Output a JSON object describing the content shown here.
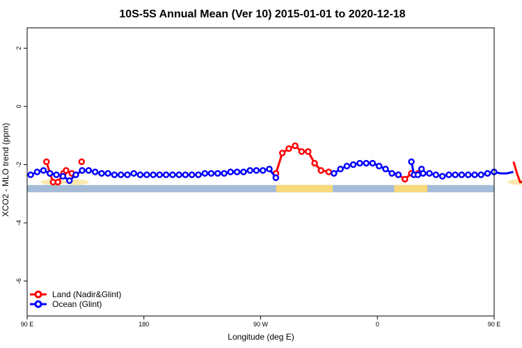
{
  "chart_data": {
    "type": "line",
    "title": "10S-5S Annual Mean (Ver 10)   2015-01-01 to 2020-12-18",
    "xlabel": "Longitude (deg E)",
    "ylabel": "XCO2 - MLO trend (ppm)",
    "xlim": [
      90,
      450
    ],
    "ylim": [
      -7.2,
      2.7
    ],
    "xticks": [
      {
        "value": 90,
        "label": "90 E"
      },
      {
        "value": 180,
        "label": "180"
      },
      {
        "value": 270,
        "label": "90 W"
      },
      {
        "value": 360,
        "label": "0"
      },
      {
        "value": 450,
        "label": "90 E"
      },
      {
        "value": 540,
        "label": "180"
      }
    ],
    "yticks": [
      {
        "value": 2,
        "label": "2"
      },
      {
        "value": 0,
        "label": "0"
      },
      {
        "value": -2,
        "label": "-2"
      },
      {
        "value": -4,
        "label": "-4"
      },
      {
        "value": -6,
        "label": "-6"
      }
    ],
    "legend_position": "bottom-left",
    "series": [
      {
        "name": "Land (Nadir&Glint)",
        "color": "#ff0000",
        "segments": [
          [
            [
              104.9,
              -1.9
            ],
            [
              107.6,
              -2.3
            ],
            [
              110.0,
              -2.6
            ],
            [
              113.7,
              -2.6
            ],
            [
              118.0,
              -2.3
            ],
            [
              120.0,
              -2.2
            ],
            [
              124.4,
              -2.3
            ]
          ],
          [
            [
              132.0,
              -1.9
            ]
          ],
          [
            [
              281.8,
              -2.3
            ],
            [
              286.7,
              -1.6
            ],
            [
              291.7,
              -1.45
            ],
            [
              296.6,
              -1.35
            ],
            [
              301.6,
              -1.55
            ],
            [
              306.6,
              -1.55
            ],
            [
              311.6,
              -1.95
            ],
            [
              316.5,
              -2.2
            ],
            [
              322.5,
              -2.25
            ]
          ],
          [
            [
              376.0,
              -2.35
            ],
            [
              381.2,
              -2.5
            ],
            [
              386.2,
              -2.3
            ],
            [
              391.4,
              -2.3
            ]
          ],
          [
            [
              464.9,
              -1.9
            ],
            [
              467.6,
              -2.3
            ],
            [
              470.0,
              -2.6
            ],
            [
              473.7,
              -2.6
            ],
            [
              478.0,
              -2.3
            ],
            [
              480.0,
              -2.2
            ],
            [
              484.4,
              -2.3
            ]
          ],
          [
            [
              492.0,
              -1.9
            ]
          ]
        ]
      },
      {
        "name": "Ocean (Glint)",
        "color": "#0000ff",
        "segments": [
          [
            [
              92.7,
              -2.35
            ],
            [
              97.7,
              -2.25
            ],
            [
              102.6,
              -2.2
            ],
            [
              107.6,
              -2.3
            ],
            [
              112.6,
              -2.35
            ],
            [
              117.6,
              -2.4
            ],
            [
              122.6,
              -2.55
            ],
            [
              127.5,
              -2.35
            ],
            [
              132.4,
              -2.2
            ],
            [
              137.4,
              -2.2
            ],
            [
              142.4,
              -2.25
            ],
            [
              147.4,
              -2.3
            ],
            [
              152.3,
              -2.3
            ],
            [
              157.3,
              -2.35
            ],
            [
              162.3,
              -2.35
            ],
            [
              167.3,
              -2.35
            ],
            [
              172.2,
              -2.3
            ],
            [
              177.2,
              -2.35
            ],
            [
              182.2,
              -2.35
            ],
            [
              187.2,
              -2.35
            ],
            [
              192.1,
              -2.35
            ],
            [
              197.1,
              -2.35
            ],
            [
              202.1,
              -2.35
            ],
            [
              207.1,
              -2.35
            ],
            [
              212.0,
              -2.35
            ],
            [
              217.0,
              -2.35
            ],
            [
              222.0,
              -2.35
            ],
            [
              227.0,
              -2.3
            ],
            [
              231.9,
              -2.3
            ],
            [
              236.9,
              -2.3
            ],
            [
              241.9,
              -2.3
            ],
            [
              246.8,
              -2.25
            ],
            [
              251.8,
              -2.25
            ],
            [
              256.8,
              -2.25
            ],
            [
              261.8,
              -2.2
            ],
            [
              266.7,
              -2.2
            ],
            [
              271.7,
              -2.2
            ],
            [
              276.7,
              -2.15
            ],
            [
              281.7,
              -2.45
            ]
          ],
          [
            [
              326.5,
              -2.3
            ],
            [
              331.5,
              -2.15
            ],
            [
              336.5,
              -2.05
            ],
            [
              341.4,
              -2.0
            ],
            [
              346.4,
              -1.95
            ],
            [
              351.4,
              -1.95
            ],
            [
              356.3,
              -1.95
            ],
            [
              361.3,
              -2.05
            ],
            [
              366.3,
              -2.15
            ],
            [
              371.2,
              -2.3
            ],
            [
              376.2,
              -2.35
            ]
          ],
          [
            [
              386.2,
              -1.9
            ],
            [
              388.2,
              -2.35
            ],
            [
              391.2,
              -2.35
            ],
            [
              395.2,
              -2.3
            ],
            [
              400.1,
              -2.3
            ],
            [
              405.1,
              -2.35
            ],
            [
              410.1,
              -2.4
            ],
            [
              415.1,
              -2.35
            ],
            [
              420.0,
              -2.35
            ],
            [
              425.0,
              -2.35
            ],
            [
              430.0,
              -2.35
            ],
            [
              435.0,
              -2.35
            ],
            [
              439.9,
              -2.35
            ],
            [
              444.9,
              -2.3
            ],
            [
              449.9,
              -2.25
            ],
            [
              454.9,
              -2.3
            ],
            [
              459.8,
              -2.3
            ],
            [
              464.8,
              -2.25
            ]
          ],
          [
            [
              394.0,
              -2.15
            ]
          ]
        ]
      }
    ],
    "surface_band": {
      "y_range": [
        -2.7,
        -2.95
      ],
      "ocean_color": "#a4bcd8",
      "land_color": "#f8d878",
      "land_ranges": [
        [
          282.0,
          325.5
        ],
        [
          373.0,
          398.5
        ]
      ]
    }
  }
}
